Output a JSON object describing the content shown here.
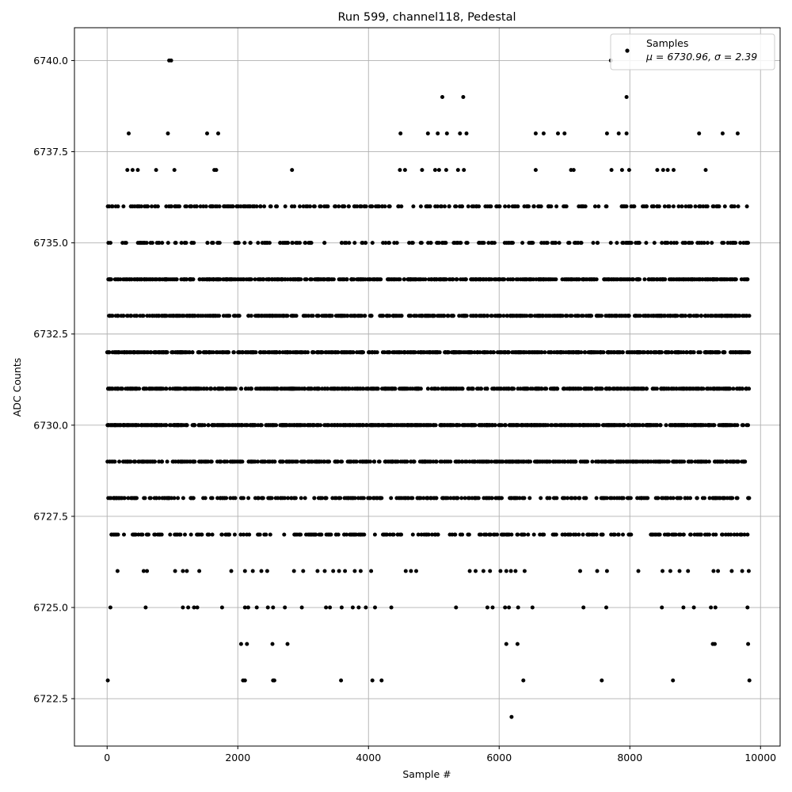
{
  "chart_data": {
    "type": "scatter",
    "title": "Run 599, channel118, Pedestal",
    "xlabel": "Sample #",
    "ylabel": "ADC Counts",
    "xlim": [
      -500,
      10300
    ],
    "ylim": [
      6721.2,
      6740.9
    ],
    "xticks": [
      0,
      2000,
      4000,
      6000,
      8000,
      10000
    ],
    "xtick_labels": [
      "0",
      "2000",
      "4000",
      "6000",
      "8000",
      "10000"
    ],
    "yticks": [
      6722.5,
      6725.0,
      6727.5,
      6730.0,
      6732.5,
      6735.0,
      6737.5,
      6740.0
    ],
    "ytick_labels": [
      "6722.5",
      "6725.0",
      "6727.5",
      "6730.0",
      "6732.5",
      "6735.0",
      "6737.5",
      "6740.0"
    ],
    "grid": true,
    "legend": {
      "position": "top-right",
      "label": "Samples",
      "stats": "μ = 6730.96, σ = 2.39"
    },
    "marker_color": "#000000",
    "series": [
      {
        "name": "Samples",
        "points": [
          [
            10,
            6723
          ],
          [
            2080,
            6723
          ],
          [
            2110,
            6723
          ],
          [
            2540,
            6723
          ],
          [
            2560,
            6723
          ],
          [
            3580,
            6723
          ],
          [
            4060,
            6723
          ],
          [
            4200,
            6723
          ],
          [
            6370,
            6723
          ],
          [
            7570,
            6723
          ],
          [
            8660,
            6723
          ],
          [
            9830,
            6723
          ],
          [
            6190,
            6722
          ],
          [
            2050,
            6724
          ],
          [
            2140,
            6724
          ],
          [
            2530,
            6724
          ],
          [
            2760,
            6724
          ],
          [
            6110,
            6724
          ],
          [
            6280,
            6724
          ],
          [
            9270,
            6724
          ],
          [
            9300,
            6724
          ],
          [
            9810,
            6724
          ],
          [
            50,
            6725
          ],
          [
            590,
            6725
          ],
          [
            1160,
            6725
          ],
          [
            1240,
            6725
          ],
          [
            1330,
            6725
          ],
          [
            1380,
            6725
          ],
          [
            1760,
            6725
          ],
          [
            2110,
            6725
          ],
          [
            2160,
            6725
          ],
          [
            2290,
            6725
          ],
          [
            2460,
            6725
          ],
          [
            2540,
            6725
          ],
          [
            2720,
            6725
          ],
          [
            2980,
            6725
          ],
          [
            3350,
            6725
          ],
          [
            3410,
            6725
          ],
          [
            3590,
            6725
          ],
          [
            3760,
            6725
          ],
          [
            3850,
            6725
          ],
          [
            3960,
            6725
          ],
          [
            4100,
            6725
          ],
          [
            4350,
            6725
          ],
          [
            5340,
            6725
          ],
          [
            5820,
            6725
          ],
          [
            5900,
            6725
          ],
          [
            6090,
            6725
          ],
          [
            6150,
            6725
          ],
          [
            6290,
            6725
          ],
          [
            6510,
            6725
          ],
          [
            7290,
            6725
          ],
          [
            7640,
            6725
          ],
          [
            8490,
            6725
          ],
          [
            8820,
            6725
          ],
          [
            8980,
            6725
          ],
          [
            9240,
            6725
          ],
          [
            9310,
            6725
          ],
          [
            9800,
            6725
          ],
          [
            160,
            6726
          ],
          [
            560,
            6726
          ],
          [
            610,
            6726
          ],
          [
            1040,
            6726
          ],
          [
            1160,
            6726
          ],
          [
            1220,
            6726
          ],
          [
            1410,
            6726
          ],
          [
            1900,
            6726
          ],
          [
            2110,
            6726
          ],
          [
            2230,
            6726
          ],
          [
            2360,
            6726
          ],
          [
            2450,
            6726
          ],
          [
            2860,
            6726
          ],
          [
            3000,
            6726
          ],
          [
            3220,
            6726
          ],
          [
            3330,
            6726
          ],
          [
            3460,
            6726
          ],
          [
            3550,
            6726
          ],
          [
            3640,
            6726
          ],
          [
            3790,
            6726
          ],
          [
            3880,
            6726
          ],
          [
            4040,
            6726
          ],
          [
            4570,
            6726
          ],
          [
            4650,
            6726
          ],
          [
            4730,
            6726
          ],
          [
            5550,
            6726
          ],
          [
            5640,
            6726
          ],
          [
            5760,
            6726
          ],
          [
            5860,
            6726
          ],
          [
            6020,
            6726
          ],
          [
            6110,
            6726
          ],
          [
            6180,
            6726
          ],
          [
            6250,
            6726
          ],
          [
            6390,
            6726
          ],
          [
            7240,
            6726
          ],
          [
            7500,
            6726
          ],
          [
            7650,
            6726
          ],
          [
            8130,
            6726
          ],
          [
            8500,
            6726
          ],
          [
            8620,
            6726
          ],
          [
            8760,
            6726
          ],
          [
            8890,
            6726
          ],
          [
            9280,
            6726
          ],
          [
            9350,
            6726
          ],
          [
            9560,
            6726
          ],
          [
            9720,
            6726
          ],
          [
            9820,
            6726
          ],
          [
            1530,
            6738
          ],
          [
            1700,
            6738
          ],
          [
            330,
            6738
          ],
          [
            930,
            6738
          ],
          [
            4490,
            6738
          ],
          [
            4910,
            6738
          ],
          [
            5060,
            6738
          ],
          [
            5200,
            6738
          ],
          [
            5400,
            6738
          ],
          [
            5500,
            6738
          ],
          [
            6560,
            6738
          ],
          [
            6680,
            6738
          ],
          [
            6900,
            6738
          ],
          [
            7000,
            6738
          ],
          [
            7650,
            6738
          ],
          [
            7830,
            6738
          ],
          [
            7950,
            6738
          ],
          [
            9060,
            6738
          ],
          [
            9420,
            6738
          ],
          [
            9650,
            6738
          ],
          [
            310,
            6737
          ],
          [
            390,
            6737
          ],
          [
            470,
            6737
          ],
          [
            750,
            6737
          ],
          [
            1030,
            6737
          ],
          [
            1640,
            6737
          ],
          [
            1670,
            6737
          ],
          [
            2830,
            6737
          ],
          [
            4480,
            6737
          ],
          [
            4560,
            6737
          ],
          [
            4820,
            6737
          ],
          [
            5020,
            6737
          ],
          [
            5080,
            6737
          ],
          [
            5190,
            6737
          ],
          [
            5370,
            6737
          ],
          [
            5460,
            6737
          ],
          [
            6560,
            6737
          ],
          [
            7100,
            6737
          ],
          [
            7140,
            6737
          ],
          [
            7720,
            6737
          ],
          [
            7880,
            6737
          ],
          [
            7990,
            6737
          ],
          [
            8420,
            6737
          ],
          [
            8510,
            6737
          ],
          [
            8580,
            6737
          ],
          [
            8670,
            6737
          ],
          [
            9160,
            6737
          ],
          [
            5130,
            6739
          ],
          [
            5450,
            6739
          ],
          [
            7950,
            6739
          ],
          [
            950,
            6740
          ],
          [
            980,
            6740
          ],
          [
            7710,
            6740
          ]
        ],
        "bands": [
          {
            "y": 6727,
            "count": 260
          },
          {
            "y": 6728,
            "count": 340
          },
          {
            "y": 6729,
            "count": 560
          },
          {
            "y": 6730,
            "count": 700
          },
          {
            "y": 6731,
            "count": 620
          },
          {
            "y": 6732,
            "count": 600
          },
          {
            "y": 6733,
            "count": 560
          },
          {
            "y": 6734,
            "count": 580
          },
          {
            "y": 6735,
            "count": 220
          },
          {
            "y": 6736,
            "count": 260
          }
        ],
        "x_range": [
          0,
          9830
        ]
      }
    ]
  }
}
